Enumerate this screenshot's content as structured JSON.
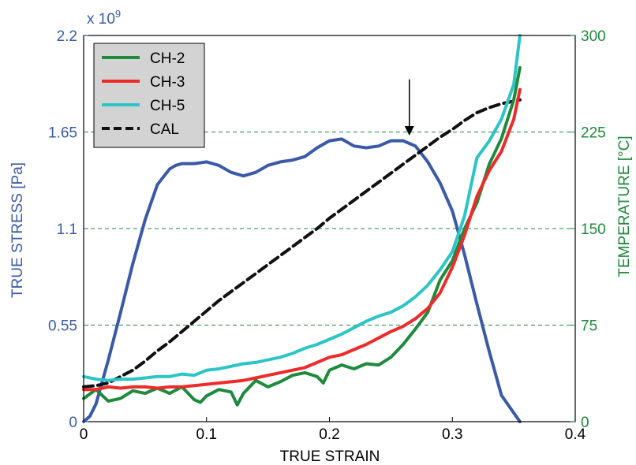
{
  "chart_data": {
    "type": "line",
    "xlabel": "TRUE STRAIN",
    "ylabel_left": "TRUE STRESS [Pa]",
    "ylabel_right": "TEMPERATURE [°C]",
    "left_multiplier": "x 10",
    "left_multiplier_exp": "9",
    "xlim": [
      0,
      0.4
    ],
    "ylim_left": [
      0,
      2.2
    ],
    "ylim_right": [
      0,
      300
    ],
    "x_ticks": [
      "0",
      "0.1",
      "0.2",
      "0.3",
      "0.4"
    ],
    "y_left_ticks": [
      "0",
      "0.55",
      "1.1",
      "1.65",
      "2.2"
    ],
    "y_right_ticks": [
      "0",
      "75",
      "150",
      "225",
      "300"
    ],
    "grid": "horizontal dashed at right-axis ticks",
    "legend_position": "top-left",
    "colors": {
      "stress": "#3a5aa8",
      "CH-2": "#1e8a3c",
      "CH-3": "#ee2b2b",
      "CH-5": "#2cc5c5",
      "CAL": "#111111",
      "left_axis": "#3a5aa8",
      "right_axis": "#1e8a3c"
    },
    "series": [
      {
        "axis": "left",
        "color": "#3a5aa8",
        "x": [
          0.0,
          0.005,
          0.01,
          0.02,
          0.03,
          0.04,
          0.05,
          0.06,
          0.07,
          0.075,
          0.08,
          0.09,
          0.1,
          0.11,
          0.12,
          0.13,
          0.14,
          0.15,
          0.16,
          0.17,
          0.18,
          0.19,
          0.2,
          0.21,
          0.22,
          0.23,
          0.24,
          0.25,
          0.26,
          0.27,
          0.28,
          0.29,
          0.3,
          0.31,
          0.32,
          0.33,
          0.34,
          0.35,
          0.355
        ],
        "values": [
          0.0,
          0.03,
          0.1,
          0.35,
          0.62,
          0.9,
          1.15,
          1.35,
          1.44,
          1.46,
          1.47,
          1.47,
          1.48,
          1.46,
          1.42,
          1.4,
          1.42,
          1.46,
          1.48,
          1.49,
          1.51,
          1.56,
          1.6,
          1.61,
          1.57,
          1.56,
          1.57,
          1.6,
          1.6,
          1.57,
          1.48,
          1.36,
          1.2,
          0.95,
          0.67,
          0.4,
          0.15,
          0.05,
          0.0
        ]
      },
      {
        "name": "CH-2",
        "axis": "right",
        "color": "#1e8a3c",
        "x": [
          0.0,
          0.01,
          0.02,
          0.03,
          0.04,
          0.05,
          0.06,
          0.07,
          0.08,
          0.09,
          0.095,
          0.1,
          0.11,
          0.12,
          0.125,
          0.13,
          0.14,
          0.15,
          0.16,
          0.17,
          0.18,
          0.19,
          0.195,
          0.2,
          0.21,
          0.22,
          0.23,
          0.24,
          0.25,
          0.26,
          0.27,
          0.28,
          0.29,
          0.3,
          0.31,
          0.32,
          0.33,
          0.34,
          0.35,
          0.355
        ],
        "values": [
          18,
          25,
          16,
          18,
          24,
          22,
          26,
          22,
          27,
          17,
          15,
          20,
          25,
          23,
          13,
          22,
          32,
          27,
          31,
          36,
          38,
          35,
          30,
          40,
          44,
          41,
          45,
          44,
          50,
          60,
          72,
          85,
          110,
          125,
          150,
          170,
          200,
          220,
          250,
          275
        ]
      },
      {
        "name": "CH-3",
        "axis": "right",
        "color": "#ee2b2b",
        "x": [
          0.0,
          0.01,
          0.02,
          0.03,
          0.04,
          0.05,
          0.06,
          0.07,
          0.08,
          0.09,
          0.1,
          0.11,
          0.12,
          0.13,
          0.14,
          0.15,
          0.16,
          0.17,
          0.18,
          0.19,
          0.2,
          0.21,
          0.22,
          0.23,
          0.24,
          0.25,
          0.26,
          0.27,
          0.28,
          0.29,
          0.3,
          0.31,
          0.32,
          0.33,
          0.34,
          0.35,
          0.355
        ],
        "values": [
          25,
          25,
          27,
          26,
          27,
          27,
          26,
          27,
          27,
          28,
          29,
          30,
          31,
          32,
          34,
          36,
          38,
          40,
          42,
          46,
          50,
          52,
          56,
          60,
          65,
          70,
          74,
          80,
          88,
          100,
          120,
          145,
          175,
          195,
          210,
          235,
          258
        ]
      },
      {
        "name": "CH-5",
        "axis": "right",
        "color": "#2cc5c5",
        "x": [
          0.0,
          0.01,
          0.02,
          0.03,
          0.04,
          0.05,
          0.06,
          0.07,
          0.08,
          0.09,
          0.1,
          0.11,
          0.12,
          0.13,
          0.14,
          0.15,
          0.16,
          0.17,
          0.18,
          0.19,
          0.2,
          0.21,
          0.22,
          0.23,
          0.24,
          0.25,
          0.26,
          0.27,
          0.28,
          0.29,
          0.3,
          0.31,
          0.32,
          0.33,
          0.34,
          0.35,
          0.355
        ],
        "values": [
          35,
          33,
          32,
          33,
          33,
          34,
          35,
          35,
          37,
          36,
          40,
          41,
          43,
          45,
          46,
          48,
          50,
          53,
          57,
          60,
          64,
          68,
          73,
          78,
          82,
          85,
          90,
          97,
          106,
          118,
          132,
          160,
          205,
          218,
          235,
          262,
          300
        ]
      },
      {
        "name": "CAL",
        "axis": "right",
        "color": "#111111",
        "dashed": true,
        "x": [
          0.0,
          0.01,
          0.02,
          0.03,
          0.04,
          0.05,
          0.06,
          0.07,
          0.08,
          0.09,
          0.1,
          0.11,
          0.12,
          0.13,
          0.14,
          0.15,
          0.16,
          0.17,
          0.18,
          0.19,
          0.2,
          0.21,
          0.22,
          0.23,
          0.24,
          0.25,
          0.26,
          0.27,
          0.28,
          0.29,
          0.3,
          0.31,
          0.32,
          0.33,
          0.34,
          0.35,
          0.355
        ],
        "values": [
          27,
          28,
          30,
          35,
          40,
          47,
          55,
          62,
          70,
          78,
          86,
          94,
          101,
          108,
          115,
          122,
          129,
          136,
          143,
          150,
          158,
          165,
          172,
          179,
          186,
          193,
          200,
          207,
          214,
          221,
          227,
          234,
          240,
          244,
          247,
          249,
          250
        ]
      }
    ],
    "annotation": {
      "type": "arrow",
      "x": 0.265,
      "y_top": 1.95,
      "y_bottom": 1.63
    }
  }
}
